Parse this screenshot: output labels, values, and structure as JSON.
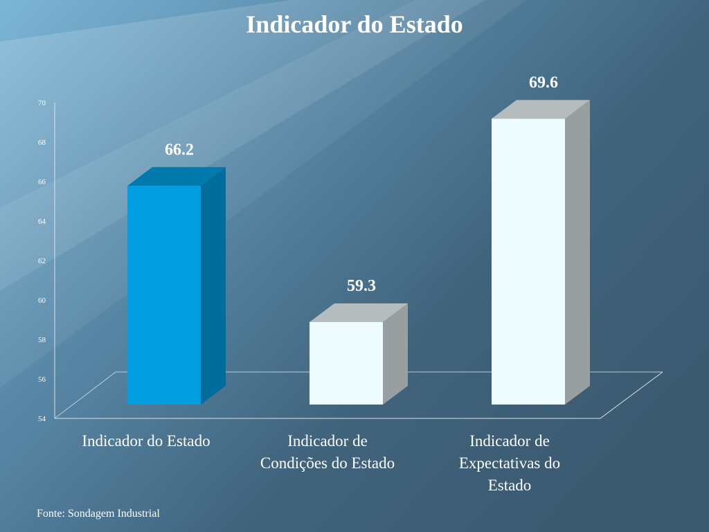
{
  "source": "Fonte: Sondagem Industrial",
  "colors": {
    "bar_primary_front": "#009ee0",
    "bar_primary_side": "#006d9c",
    "bar_primary_top": "#0079ad",
    "bar_light_front": "#eefcff",
    "bar_light_side": "#999fa0",
    "bar_light_top": "#b5bcbd"
  },
  "chart_data": {
    "type": "bar",
    "title": "Indicador do Estado",
    "categories": [
      "Indicador do Estado",
      "Indicador de Condições do Estado",
      "Indicador de Expectativas do Estado"
    ],
    "category_lines": [
      [
        "Indicador do Estado"
      ],
      [
        "Indicador de",
        "Condições do Estado"
      ],
      [
        "Indicador de",
        "Expectativas do",
        "Estado"
      ]
    ],
    "values": [
      66.2,
      59.3,
      69.6
    ],
    "data_labels": [
      "66.2",
      "59.3",
      "69.6"
    ],
    "ylim": [
      54,
      70
    ],
    "yticks": [
      54,
      56,
      58,
      60,
      62,
      64,
      66,
      68,
      70
    ],
    "style": "3d",
    "grid": false,
    "xlabel": "",
    "ylabel": ""
  }
}
